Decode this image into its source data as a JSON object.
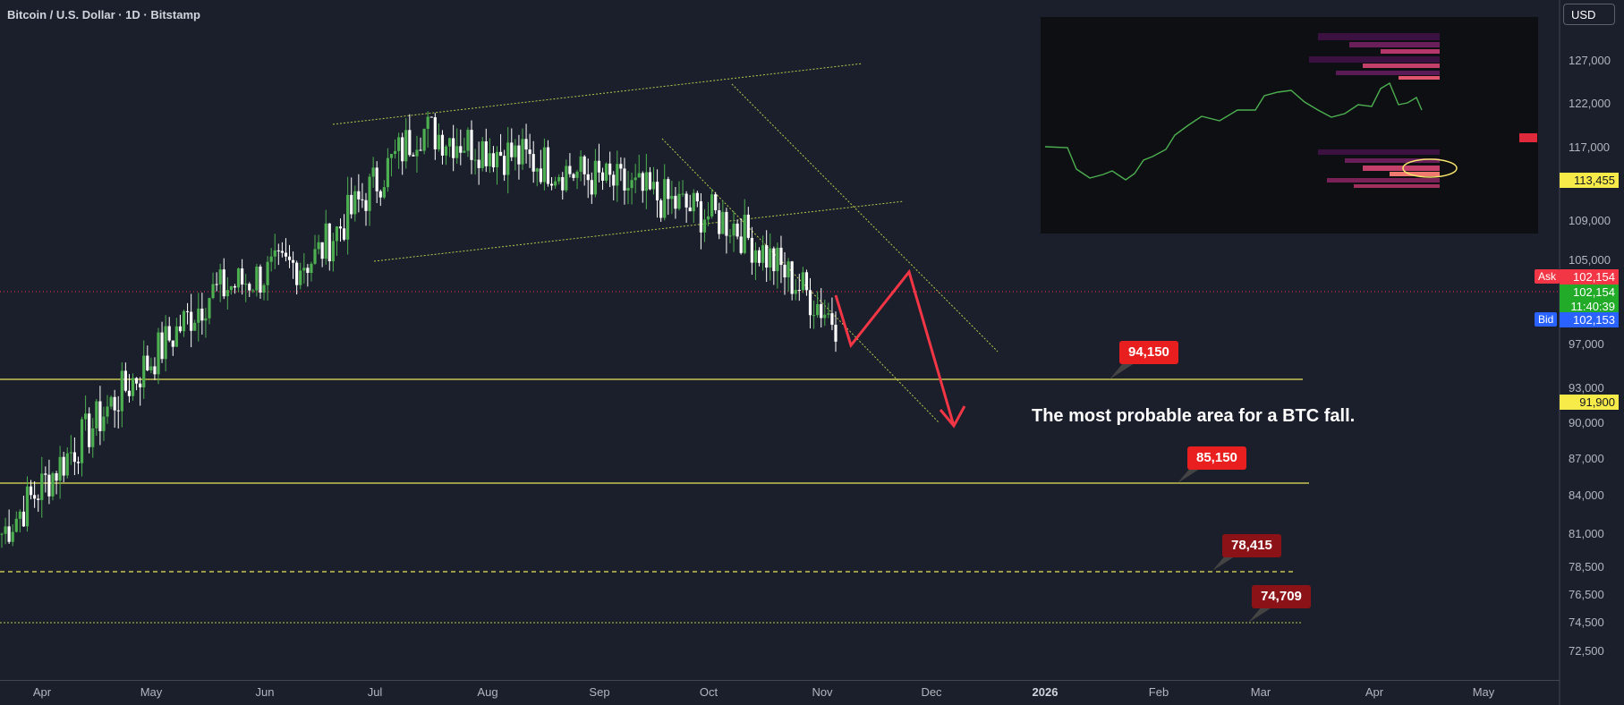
{
  "header": {
    "symbol_title": "Bitcoin / U.S. Dollar · 1D · Bitstamp"
  },
  "currency": "USD",
  "annotation": "The most probable area for a BTC fall.",
  "colors": {
    "background": "#1b1f2b",
    "up_candle": "#4caf50",
    "down_candle": "#ffffff",
    "support": "#e8e35a",
    "channel": "#b6c94b",
    "arrow": "#f23645",
    "tag_red": "#e91e1e",
    "tag_dark_red": "#8b1318",
    "ask": "#f23645",
    "bid": "#2962ff",
    "last": "#22ab28",
    "highlight": "#f5e66b"
  },
  "price_scale": {
    "ticks": [
      "127,000",
      "122,000",
      "117,000",
      "109,000",
      "105,000",
      "97,000",
      "93,000",
      "90,000",
      "87,000",
      "84,000",
      "81,000",
      "78,500",
      "76,500",
      "74,500",
      "72,500"
    ],
    "tags": {
      "level_113": "113,455",
      "ask_label": "Ask",
      "ask_value": "102,154",
      "last_value": "102,154",
      "countdown": "11:40:39",
      "bid_label": "Bid",
      "bid_value": "102,153",
      "level_91": "91,900"
    }
  },
  "time_scale": {
    "ticks": [
      "Apr",
      "May",
      "Jun",
      "Jul",
      "Aug",
      "Sep",
      "Oct",
      "Nov",
      "Dec",
      "2026",
      "Feb",
      "Mar",
      "Apr",
      "May"
    ]
  },
  "levels": {
    "l94150": "94,150",
    "l85150": "85,150",
    "l78415": "78,415",
    "l74709": "74,709"
  },
  "chart_data": {
    "type": "candlestick",
    "title": "Bitcoin / U.S. Dollar · 1D · Bitstamp",
    "x": [
      "Mar",
      "Apr",
      "May",
      "Jun",
      "Jul",
      "Aug",
      "Sep",
      "Oct",
      "Nov"
    ],
    "close_approx": [
      84000,
      94500,
      104500,
      107500,
      118500,
      116000,
      113500,
      110500,
      102154
    ],
    "ylim": [
      71500,
      129500
    ],
    "horizontal_levels": [
      94150,
      85150,
      78415,
      74709,
      113455,
      91900
    ],
    "last_price": 102154,
    "ask": 102154,
    "bid": 102153,
    "projection": [
      102154,
      97500,
      104200,
      91200
    ]
  }
}
